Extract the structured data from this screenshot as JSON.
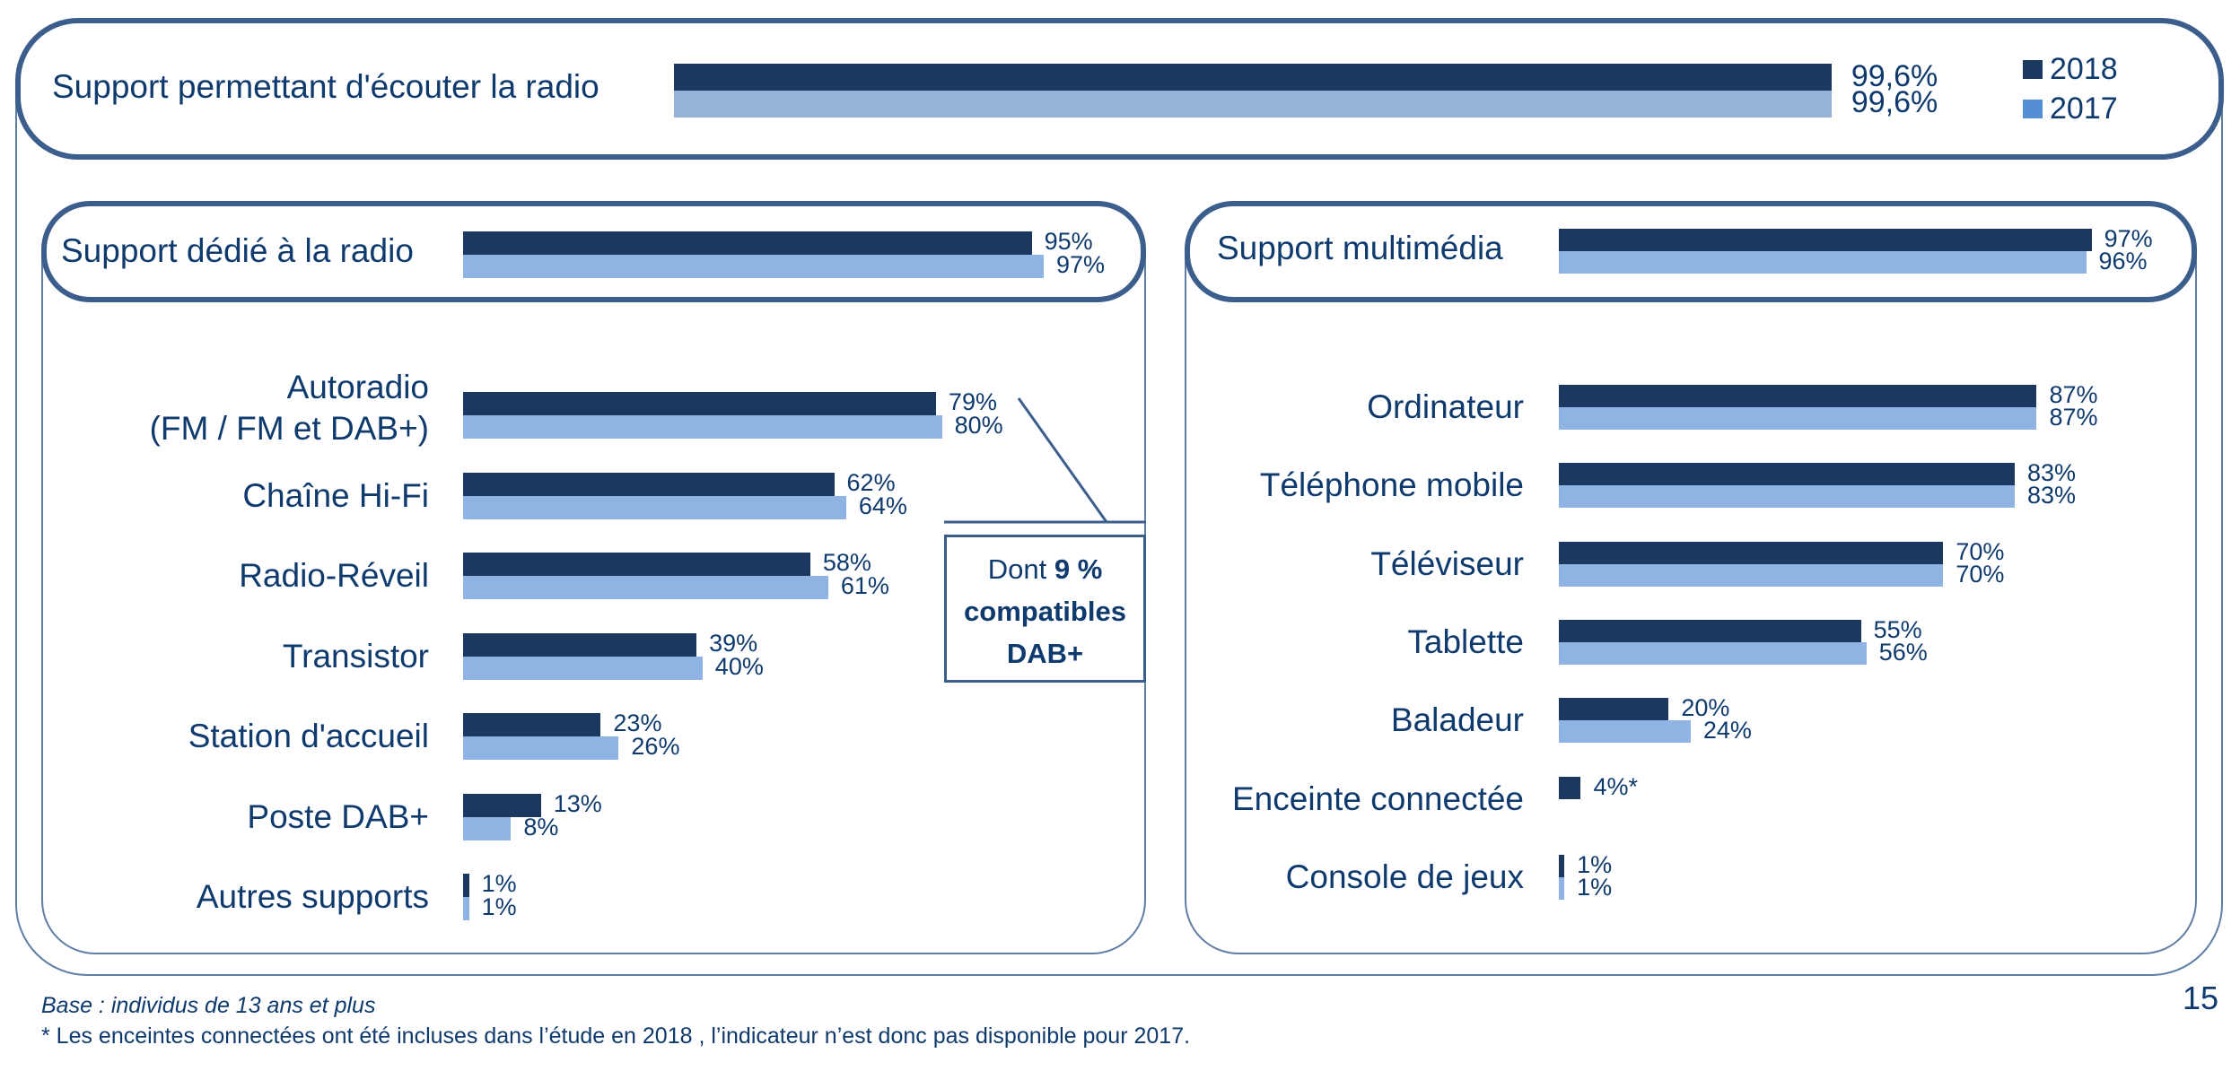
{
  "legend": [
    {
      "label": "2018",
      "color": "#1a3860"
    },
    {
      "label": "2017",
      "color": "#558ed5"
    }
  ],
  "colors": {
    "y2018": "#1a3860",
    "y2017": "#8fb3e2",
    "frame": "#3b5e8c",
    "text": "#0e3a6e"
  },
  "callout": {
    "prefix": "Dont",
    "bold_value": "9 %",
    "line2": "compatibles",
    "line3": "DAB+"
  },
  "footer": {
    "base": "Base : individus de 13 ans et plus",
    "note": "* Les enceintes connectées ont été incluses dans l’étude en 2018 , l’indicateur n’est donc pas disponible pour 2017."
  },
  "page_number": "15",
  "chart_data": [
    {
      "type": "bar",
      "orientation": "horizontal",
      "title": "Support permettant d'écouter la radio",
      "categories": [
        "Support permettant d'écouter la radio"
      ],
      "series": [
        {
          "name": "2018",
          "values": [
            99.6
          ],
          "labels": [
            "99,6%"
          ]
        },
        {
          "name": "2017",
          "values": [
            99.6
          ],
          "labels": [
            "99,6%"
          ]
        }
      ],
      "legend": "top-right",
      "xlim": [
        0,
        100
      ]
    },
    {
      "type": "bar",
      "orientation": "horizontal",
      "title": "Support dédié à la radio",
      "header": {
        "label": "Support dédié à la radio",
        "v2018": 95,
        "v2017": 97,
        "l2018": "95%",
        "l2017": "97%"
      },
      "categories": [
        "Autoradio\n(FM / FM et DAB+)",
        "Chaîne Hi-Fi",
        "Radio-Réveil",
        "Transistor",
        "Station d'accueil",
        "Poste DAB+",
        "Autres supports"
      ],
      "series": [
        {
          "name": "2018",
          "values": [
            79,
            62,
            58,
            39,
            23,
            13,
            1
          ],
          "labels": [
            "79%",
            "62%",
            "58%",
            "39%",
            "23%",
            "13%",
            "1%"
          ]
        },
        {
          "name": "2017",
          "values": [
            80,
            64,
            61,
            40,
            26,
            8,
            1
          ],
          "labels": [
            "80%",
            "64%",
            "61%",
            "40%",
            "26%",
            "8%",
            "1%"
          ]
        }
      ],
      "annotations": [
        "Dont 9 % compatibles DAB+ (Autoradio)"
      ],
      "xlim": [
        0,
        100
      ]
    },
    {
      "type": "bar",
      "orientation": "horizontal",
      "title": "Support multimédia",
      "header": {
        "label": "Support multimédia",
        "v2018": 97,
        "v2017": 96,
        "l2018": "97%",
        "l2017": "96%"
      },
      "categories": [
        "Ordinateur",
        "Téléphone mobile",
        "Téléviseur",
        "Tablette",
        "Baladeur",
        "Enceinte connectée",
        "Console de jeux"
      ],
      "series": [
        {
          "name": "2018",
          "values": [
            87,
            83,
            70,
            55,
            20,
            4,
            1
          ],
          "labels": [
            "87%",
            "83%",
            "70%",
            "55%",
            "20%",
            "4%*",
            "1%"
          ]
        },
        {
          "name": "2017",
          "values": [
            87,
            83,
            70,
            56,
            24,
            null,
            1
          ],
          "labels": [
            "87%",
            "83%",
            "70%",
            "56%",
            "24%",
            "",
            "1%"
          ]
        }
      ],
      "xlim": [
        0,
        100
      ]
    }
  ]
}
